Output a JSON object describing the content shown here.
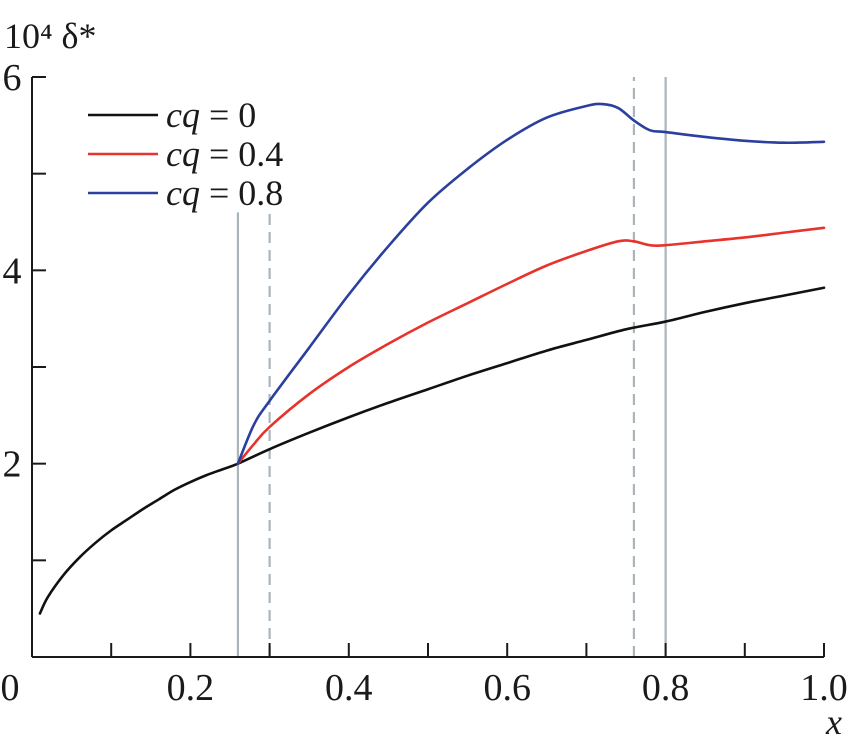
{
  "chart_data": {
    "type": "line",
    "ylabel": "10⁴ δ*",
    "xlabel": "x",
    "xlim": [
      0,
      1.0
    ],
    "ylim": [
      0,
      6
    ],
    "x_ticks": [
      0,
      0.1,
      0.2,
      0.3,
      0.4,
      0.5,
      0.6,
      0.7,
      0.8,
      0.9,
      1.0
    ],
    "x_tick_labels": [
      {
        "value": 0,
        "label": "0"
      },
      {
        "value": 0.2,
        "label": "0.2"
      },
      {
        "value": 0.4,
        "label": "0.4"
      },
      {
        "value": 0.6,
        "label": "0.6"
      },
      {
        "value": 0.8,
        "label": "0.8"
      },
      {
        "value": 1.0,
        "label": "1.0"
      }
    ],
    "y_ticks": [
      1,
      2,
      3,
      4,
      5,
      6
    ],
    "y_tick_labels": [
      {
        "value": 2,
        "label": "2"
      },
      {
        "value": 4,
        "label": "4"
      },
      {
        "value": 6,
        "label": "6"
      }
    ],
    "grid": false,
    "legend_position": "top-left",
    "vertical_lines": [
      {
        "x": 0.26,
        "style": "solid",
        "ymax": 4.6
      },
      {
        "x": 0.3,
        "style": "dashed",
        "ymax": 4.6
      },
      {
        "x": 0.76,
        "style": "dashed",
        "ymax": 6.0
      },
      {
        "x": 0.8,
        "style": "solid",
        "ymax": 6.0
      }
    ],
    "series": [
      {
        "name_var": "cq",
        "name_value": " = 0",
        "color": "#111111",
        "points": [
          [
            0.01,
            0.45
          ],
          [
            0.02,
            0.62
          ],
          [
            0.04,
            0.85
          ],
          [
            0.06,
            1.03
          ],
          [
            0.08,
            1.18
          ],
          [
            0.1,
            1.31
          ],
          [
            0.12,
            1.42
          ],
          [
            0.14,
            1.53
          ],
          [
            0.16,
            1.63
          ],
          [
            0.18,
            1.73
          ],
          [
            0.2,
            1.81
          ],
          [
            0.22,
            1.88
          ],
          [
            0.24,
            1.94
          ],
          [
            0.26,
            2.0
          ],
          [
            0.3,
            2.15
          ],
          [
            0.35,
            2.32
          ],
          [
            0.4,
            2.48
          ],
          [
            0.45,
            2.63
          ],
          [
            0.5,
            2.77
          ],
          [
            0.55,
            2.91
          ],
          [
            0.6,
            3.04
          ],
          [
            0.65,
            3.17
          ],
          [
            0.7,
            3.28
          ],
          [
            0.75,
            3.39
          ],
          [
            0.8,
            3.47
          ],
          [
            0.85,
            3.57
          ],
          [
            0.9,
            3.66
          ],
          [
            0.95,
            3.74
          ],
          [
            1.0,
            3.82
          ]
        ]
      },
      {
        "name_var": "cq",
        "name_value": " = 0.4",
        "color": "#e8322c",
        "points": [
          [
            0.26,
            2.0
          ],
          [
            0.28,
            2.2
          ],
          [
            0.3,
            2.38
          ],
          [
            0.35,
            2.72
          ],
          [
            0.4,
            3.0
          ],
          [
            0.45,
            3.24
          ],
          [
            0.5,
            3.46
          ],
          [
            0.55,
            3.66
          ],
          [
            0.6,
            3.86
          ],
          [
            0.65,
            4.05
          ],
          [
            0.7,
            4.2
          ],
          [
            0.74,
            4.3
          ],
          [
            0.76,
            4.3
          ],
          [
            0.78,
            4.26
          ],
          [
            0.8,
            4.26
          ],
          [
            0.85,
            4.3
          ],
          [
            0.9,
            4.34
          ],
          [
            0.95,
            4.39
          ],
          [
            1.0,
            4.44
          ]
        ]
      },
      {
        "name_var": "cq",
        "name_value": " = 0.8",
        "color": "#2b3f9e",
        "points": [
          [
            0.26,
            2.0
          ],
          [
            0.28,
            2.4
          ],
          [
            0.3,
            2.65
          ],
          [
            0.35,
            3.2
          ],
          [
            0.4,
            3.75
          ],
          [
            0.45,
            4.25
          ],
          [
            0.5,
            4.7
          ],
          [
            0.55,
            5.05
          ],
          [
            0.6,
            5.35
          ],
          [
            0.65,
            5.58
          ],
          [
            0.7,
            5.7
          ],
          [
            0.72,
            5.72
          ],
          [
            0.74,
            5.68
          ],
          [
            0.76,
            5.55
          ],
          [
            0.78,
            5.45
          ],
          [
            0.8,
            5.43
          ],
          [
            0.85,
            5.38
          ],
          [
            0.9,
            5.34
          ],
          [
            0.95,
            5.32
          ],
          [
            1.0,
            5.33
          ]
        ]
      }
    ]
  }
}
